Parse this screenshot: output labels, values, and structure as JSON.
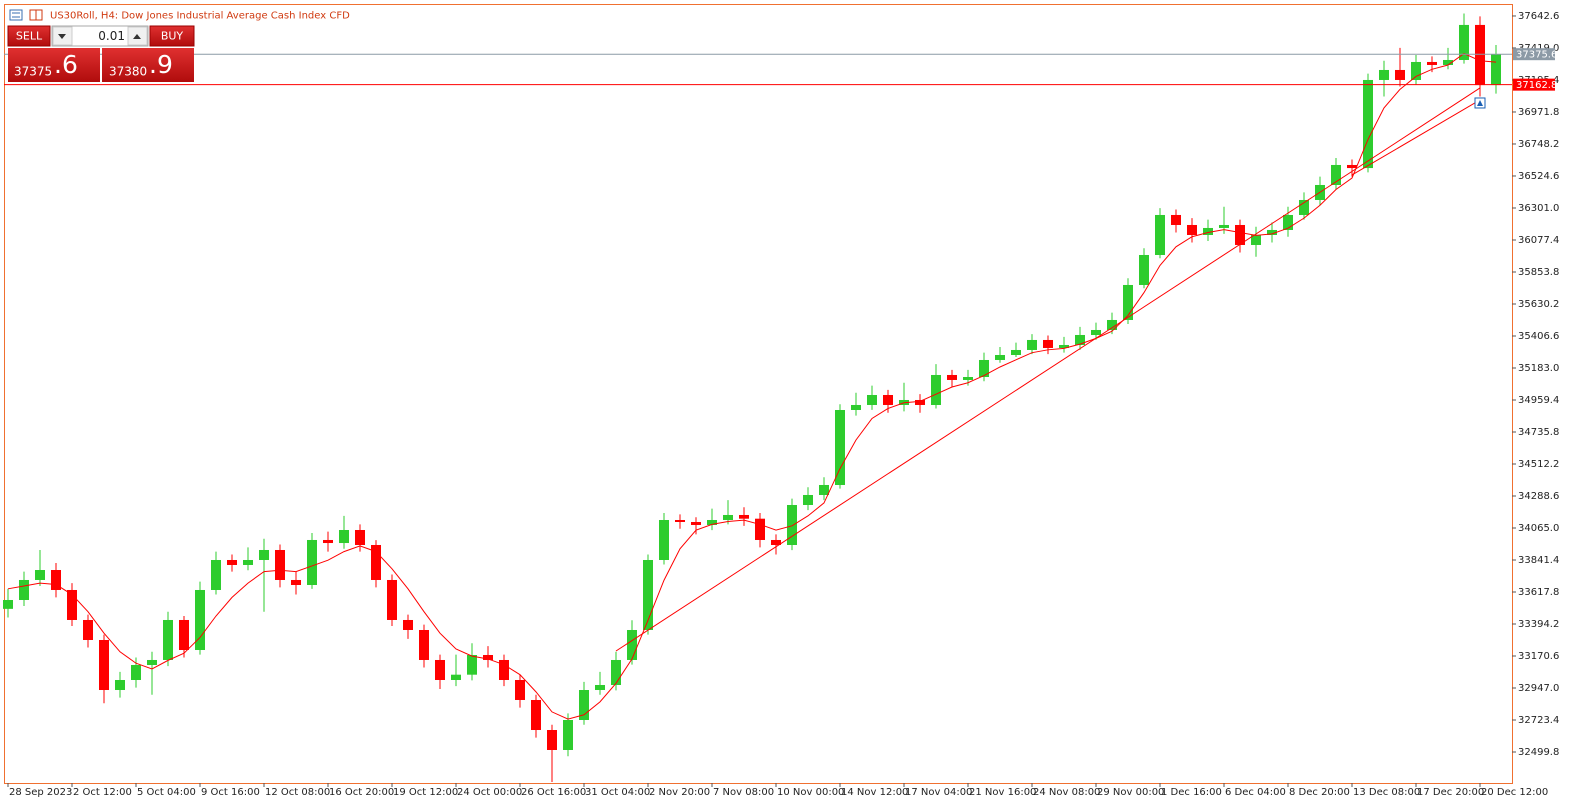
{
  "chart_data": {
    "type": "candlestick",
    "title": "US30Roll, H4:  Dow Jones Industrial Average Cash Index CFD",
    "up_color": "#2ecc2e",
    "down_color": "#ff0000",
    "frame_color": "#f07030",
    "categories": [
      "28 Sep 2023",
      null,
      null,
      null,
      "2 Oct 12:00",
      null,
      null,
      null,
      "5 Oct 04:00",
      null,
      null,
      null,
      "9 Oct 16:00",
      null,
      null,
      null,
      "12 Oct 08:00",
      null,
      null,
      null,
      "16 Oct 20:00",
      null,
      null,
      null,
      "19 Oct 12:00",
      null,
      null,
      null,
      "24 Oct 00:00",
      null,
      null,
      null,
      "26 Oct 16:00",
      null,
      null,
      null,
      "31 Oct 04:00",
      null,
      null,
      null,
      "2 Nov 20:00",
      null,
      null,
      null,
      "7 Nov 08:00",
      null,
      null,
      null,
      "10 Nov 00:00",
      null,
      null,
      null,
      "14 Nov 12:00",
      null,
      null,
      null,
      "17 Nov 04:00",
      null,
      null,
      null,
      "21 Nov 16:00",
      null,
      null,
      null,
      "24 Nov 08:00",
      null,
      null,
      null,
      "29 Nov 00:00",
      null,
      null,
      null,
      "1 Dec 16:00",
      null,
      null,
      null,
      "6 Dec 04:00",
      null,
      null,
      null,
      "8 Dec 20:00",
      null,
      null,
      null,
      "13 Dec 08:00",
      null,
      null,
      null,
      "17 Dec 20:00",
      null,
      null,
      null,
      "20 Dec 12:00",
      null
    ],
    "open": [
      33500.0,
      33561.9,
      33701.7,
      33771.5,
      33631.8,
      33422.2,
      33282.4,
      32933.0,
      33002.9,
      33107.7,
      33142.7,
      33422.2,
      33212.5,
      33631.8,
      33841.4,
      33806.5,
      33841.4,
      33911.3,
      33701.7,
      33666.7,
      33981.2,
      33960.0,
      34051.0,
      33946.2,
      33701.7,
      33422.2,
      33352.3,
      33142.7,
      33002.9,
      33040.0,
      33177.6,
      33142.7,
      33002.9,
      32863.2,
      32653.5,
      32513.8,
      32723.4,
      32933.0,
      32968.0,
      33142.7,
      33352.3,
      33841.4,
      34120.9,
      34106.9,
      34086.0,
      34120.9,
      34155.9,
      34130.0,
      33981.2,
      33946.2,
      34225.7,
      34295.6,
      34365.5,
      34889.5,
      34924.5,
      34994.3,
      34924.5,
      34959.4,
      34924.5,
      35134.1,
      35099.2,
      35120.0,
      35238.9,
      35273.8,
      35308.8,
      35378.7,
      35322.8,
      35343.7,
      35413.6,
      35448.5,
      35518.4,
      35763.0,
      35972.6,
      36252.1,
      36182.2,
      36112.3,
      36161.3,
      36182.2,
      36042.5,
      36112.3,
      36147.3,
      36252.1,
      36356.9,
      36461.7,
      36601.5,
      36580.0,
      37195.4,
      37265.3,
      37195.4,
      37321.2,
      37300.2,
      37335.1,
      37580.0,
      37160.0
    ],
    "high": [
      33640.0,
      33760.0,
      33911.3,
      33820.0,
      33680.0,
      33460.0,
      33320.0,
      33060.0,
      33160.0,
      33200.0,
      33480.0,
      33450.0,
      33690.0,
      33900.0,
      33880.0,
      33930.0,
      33990.0,
      33950.0,
      33760.0,
      34030.0,
      34040.0,
      34150.0,
      34090.0,
      33980.0,
      33740.0,
      33460.0,
      33390.0,
      33180.0,
      33180.0,
      33260.0,
      33240.0,
      33180.0,
      33040.0,
      32900.0,
      32690.0,
      32770.0,
      32990.0,
      33060.0,
      33200.0,
      33420.0,
      33880.0,
      34170.0,
      34160.0,
      34140.0,
      34200.0,
      34260.0,
      34210.0,
      34170.0,
      34020.0,
      34270.0,
      34350.0,
      34420.0,
      34930.0,
      35010.0,
      35060.0,
      35030.0,
      35080.0,
      35000.0,
      35210.0,
      35170.0,
      35170.0,
      35290.0,
      35330.0,
      35360.0,
      35420.0,
      35410.0,
      35400.0,
      35470.0,
      35500.0,
      35570.0,
      35810.0,
      36020.0,
      36300.0,
      36290.0,
      36230.0,
      36220.0,
      36310.0,
      36220.0,
      36170.0,
      36200.0,
      36310.0,
      36410.0,
      36520.0,
      36650.0,
      36640.0,
      37240.0,
      37330.0,
      37420.0,
      37370.0,
      37360.0,
      37420.0,
      37660.0,
      37640.0,
      37440.0
    ],
    "low": [
      33440.0,
      33520.0,
      33660.0,
      33580.0,
      33380.0,
      33230.0,
      32840.0,
      32880.0,
      32950.0,
      32900.0,
      33100.0,
      33160.0,
      33180.0,
      33600.0,
      33760.0,
      33770.0,
      33480.0,
      33650.0,
      33600.0,
      33640.0,
      33900.0,
      33920.0,
      33900.0,
      33650.0,
      33380.0,
      33290.0,
      33090.0,
      32940.0,
      32960.0,
      33000.0,
      33090.0,
      32960.0,
      32810.0,
      32600.0,
      32290.0,
      32470.0,
      32690.0,
      32900.0,
      32930.0,
      33110.0,
      33320.0,
      33810.0,
      34060.0,
      34020.0,
      34050.0,
      34090.0,
      34080.0,
      33930.0,
      33880.0,
      33910.0,
      34190.0,
      34260.0,
      34340.0,
      34850.0,
      34890.0,
      34870.0,
      34880.0,
      34870.0,
      34900.0,
      35050.0,
      35060.0,
      35090.0,
      35220.0,
      35260.0,
      35280.0,
      35280.0,
      35290.0,
      35310.0,
      35380.0,
      35420.0,
      35490.0,
      35740.0,
      35950.0,
      36130.0,
      36060.0,
      36070.0,
      36120.0,
      35990.0,
      35960.0,
      36060.0,
      36100.0,
      36220.0,
      36320.0,
      36430.0,
      36520.0,
      36550.0,
      37080.0,
      37150.0,
      37160.0,
      37250.0,
      37270.0,
      37310.0,
      37080.0,
      37100.0
    ],
    "close": [
      33561.9,
      33701.7,
      33771.5,
      33631.8,
      33422.2,
      33282.4,
      32933.0,
      33002.9,
      33107.7,
      33142.7,
      33422.2,
      33212.5,
      33631.8,
      33841.4,
      33806.5,
      33841.4,
      33911.3,
      33701.7,
      33666.7,
      33981.2,
      33960.0,
      34051.0,
      33946.2,
      33701.7,
      33422.2,
      33352.3,
      33142.7,
      33002.9,
      33040.0,
      33177.6,
      33142.7,
      33002.9,
      32863.2,
      32653.5,
      32513.8,
      32723.4,
      32933.0,
      32968.0,
      33142.7,
      33352.3,
      33841.4,
      34120.9,
      34106.9,
      34086.0,
      34120.9,
      34155.9,
      34130.0,
      33981.2,
      33946.2,
      34225.7,
      34295.6,
      34365.5,
      34889.5,
      34924.5,
      34994.3,
      34924.5,
      34959.4,
      34924.5,
      35134.1,
      35099.2,
      35120.0,
      35238.9,
      35273.8,
      35308.8,
      35378.7,
      35322.8,
      35343.7,
      35413.6,
      35448.5,
      35518.4,
      35763.0,
      35972.6,
      36252.1,
      36182.2,
      36112.3,
      36161.3,
      36182.2,
      36042.5,
      36112.3,
      36147.3,
      36252.1,
      36356.9,
      36461.7,
      36601.5,
      36580.0,
      37195.4,
      37265.3,
      37195.4,
      37321.2,
      37300.2,
      37335.1,
      37580.0,
      37160.0,
      37375.6
    ],
    "moving_average": {
      "color": "#ff0000",
      "values": [
        33640,
        33660,
        33680,
        33670,
        33600,
        33480,
        33330,
        33200,
        33120,
        33080,
        33140,
        33190,
        33300,
        33450,
        33580,
        33680,
        33760,
        33770,
        33760,
        33800,
        33840,
        33900,
        33940,
        33900,
        33780,
        33640,
        33480,
        33330,
        33220,
        33170,
        33150,
        33110,
        33040,
        32920,
        32780,
        32730,
        32760,
        32850,
        32980,
        33150,
        33420,
        33700,
        33920,
        34050,
        34090,
        34110,
        34120,
        34090,
        34050,
        34080,
        34150,
        34240,
        34480,
        34680,
        34830,
        34900,
        34940,
        34950,
        35000,
        35050,
        35080,
        35130,
        35190,
        35240,
        35290,
        35310,
        35320,
        35350,
        35390,
        35440,
        35550,
        35710,
        35900,
        36030,
        36100,
        36130,
        36150,
        36130,
        36110,
        36120,
        36160,
        36230,
        36320,
        36430,
        36510,
        36780,
        37000,
        37130,
        37220,
        37270,
        37300,
        37380,
        37330,
        37320
      ]
    },
    "trendlines": [
      {
        "color": "#ff0000",
        "x": [
          38,
          92
        ],
        "y": [
          33205.5,
          37139.5
        ]
      },
      {
        "color": "#ff0000",
        "x": [
          84,
          92
        ],
        "y": [
          36531.6,
          37055.7
        ]
      }
    ],
    "price_lines": [
      {
        "value": 37375.6,
        "color": "#8c9aa6"
      },
      {
        "value": 37162.8,
        "color": "#ff0000"
      }
    ],
    "ylim": [
      32283.2,
      37726.3
    ],
    "yticks": [
      32499.8,
      32723.4,
      {
        "value": 32947.0,
        "label": "32947.0"
      },
      33170.6,
      33394.2,
      33617.8,
      33841.4,
      {
        "value": 34065.0,
        "label": "34065.0"
      },
      34288.6,
      34512.2,
      34735.8,
      34959.4,
      {
        "value": 35183.0,
        "label": "35183.0"
      },
      35406.6,
      35630.2,
      35853.8,
      36077.4,
      {
        "value": 36301.0,
        "label": "36301.0"
      },
      36524.6,
      36748.2,
      36971.8,
      37195.4,
      {
        "value": 37419.0,
        "label": "37419.0"
      },
      37642.6
    ]
  },
  "trade_panel": {
    "sell_label": "SELL",
    "buy_label": "BUY",
    "lot": "0.01",
    "sell_price": "37375",
    "sell_fraction": ".6",
    "buy_price": "37380",
    "buy_fraction": ".9"
  }
}
